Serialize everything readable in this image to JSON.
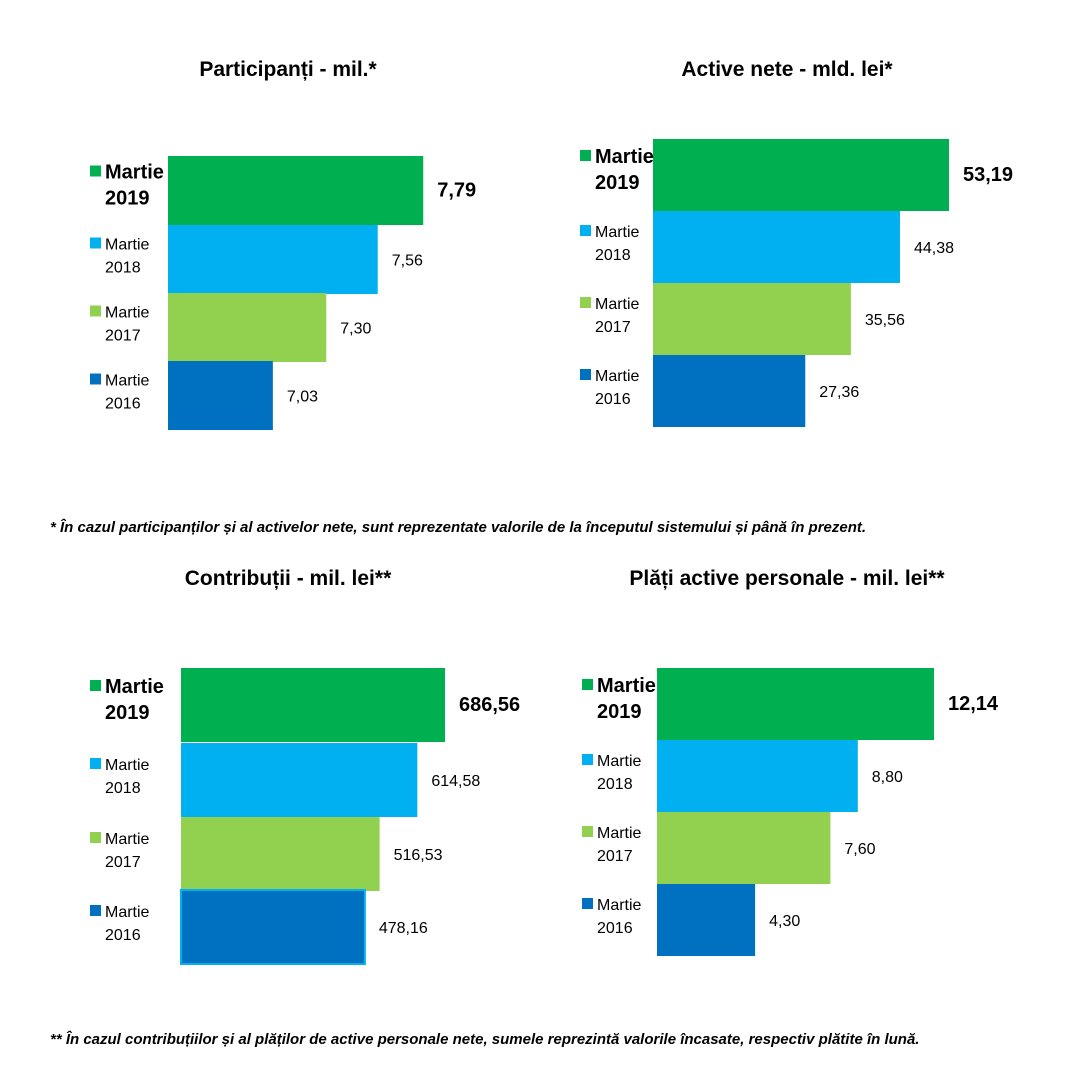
{
  "notes": {
    "note1": "* În cazul participanților și al activelor nete, sunt reprezentate valorile de la începutul sistemului și până în prezent.",
    "note2": "** În cazul contribuțiilor și al plăților de active personale nete, sumele reprezintă valorile încasate, respectiv plătite în lună."
  },
  "colors": {
    "2019": "#00b050",
    "2018": "#00b0f0",
    "2017": "#92d050",
    "2016": "#0070c0"
  },
  "chart_data": [
    {
      "type": "bar",
      "orientation": "horizontal",
      "title": "Participanți - mil.*",
      "categories": [
        [
          "Martie",
          "2019"
        ],
        [
          "Martie",
          "2018"
        ],
        [
          "Martie",
          "2017"
        ],
        [
          "Martie",
          "2016"
        ]
      ],
      "values": [
        7.79,
        7.56,
        7.3,
        7.03
      ],
      "value_labels": [
        "7,79",
        "7,56",
        "7,30",
        "7,03"
      ],
      "xlim": [
        6.5,
        7.9
      ]
    },
    {
      "type": "bar",
      "orientation": "horizontal",
      "title": "Active nete - mld. lei*",
      "categories": [
        [
          "Martie",
          "2019"
        ],
        [
          "Martie",
          "2018"
        ],
        [
          "Martie",
          "2017"
        ],
        [
          "Martie",
          "2016"
        ]
      ],
      "values": [
        53.19,
        44.38,
        35.56,
        27.36
      ],
      "value_labels": [
        "53,19",
        "44,38",
        "35,56",
        "27,36"
      ],
      "xlim": [
        0,
        53.19
      ]
    },
    {
      "type": "bar",
      "orientation": "horizontal",
      "title": "Contribuții - mil. lei**",
      "categories": [
        [
          "Martie",
          "2019"
        ],
        [
          "Martie",
          "2018"
        ],
        [
          "Martie",
          "2017"
        ],
        [
          "Martie",
          "2016"
        ]
      ],
      "values": [
        686.56,
        614.58,
        516.53,
        478.16
      ],
      "value_labels": [
        "686,56",
        "614,58",
        "516,53",
        "478,16"
      ],
      "xlim": [
        0,
        686.56
      ]
    },
    {
      "type": "bar",
      "orientation": "horizontal",
      "title": "Plăți active personale - mil. lei**",
      "categories": [
        [
          "Martie",
          "2019"
        ],
        [
          "Martie",
          "2018"
        ],
        [
          "Martie",
          "2017"
        ],
        [
          "Martie",
          "2016"
        ]
      ],
      "values": [
        12.14,
        8.8,
        7.6,
        4.3
      ],
      "value_labels": [
        "12,14",
        "8,80",
        "7,60",
        "4,30"
      ],
      "xlim": [
        0,
        12.14
      ]
    }
  ]
}
